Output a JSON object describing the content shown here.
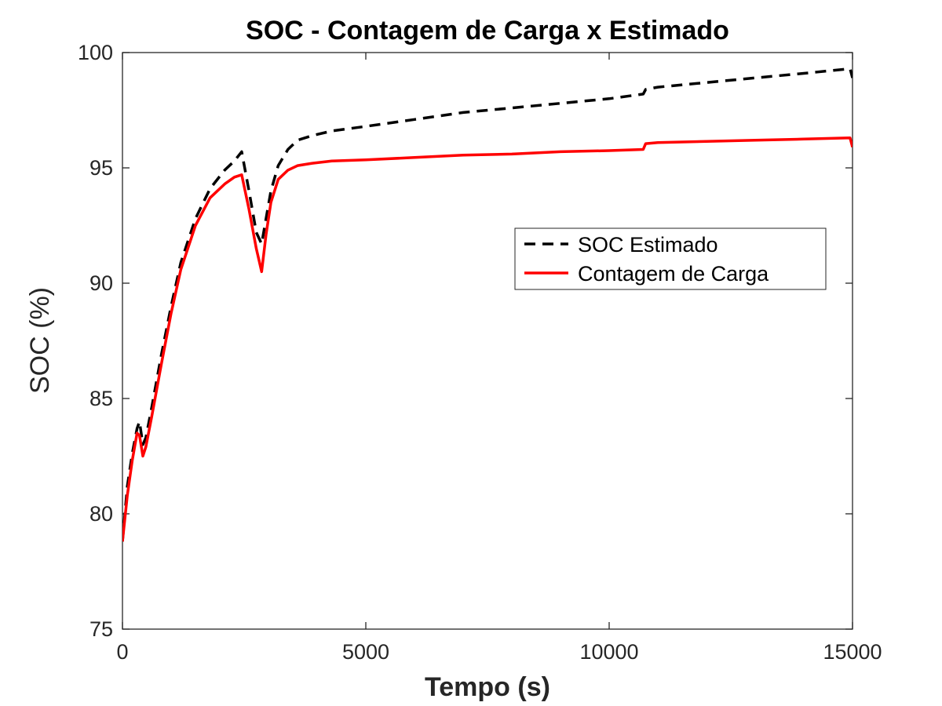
{
  "chart_data": {
    "type": "line",
    "title": "SOC - Contagem de Carga x Estimado",
    "xlabel": "Tempo (s)",
    "ylabel": "SOC (%)",
    "xlim": [
      0,
      15000
    ],
    "ylim": [
      75,
      100
    ],
    "xticks": [
      0,
      5000,
      10000,
      15000
    ],
    "yticks": [
      75,
      80,
      85,
      90,
      95,
      100
    ],
    "grid": false,
    "legend_position": "upper-right",
    "series": [
      {
        "name": "SOC Estimado",
        "color": "#000000",
        "style": "dashed",
        "x": [
          0,
          100,
          200,
          300,
          350,
          420,
          480,
          600,
          800,
          1000,
          1200,
          1500,
          1800,
          2100,
          2300,
          2450,
          2600,
          2750,
          2860,
          2950,
          3050,
          3200,
          3400,
          3600,
          3900,
          4300,
          5000,
          6000,
          7000,
          8000,
          9000,
          10000,
          10700,
          10750,
          11000,
          12000,
          13000,
          14000,
          14950,
          15000
        ],
        "y": [
          78.8,
          81.2,
          82.6,
          83.7,
          84.0,
          83.0,
          83.3,
          84.6,
          86.9,
          89.0,
          90.9,
          92.8,
          94.1,
          94.9,
          95.3,
          95.7,
          94.0,
          92.2,
          91.7,
          92.8,
          94.0,
          95.1,
          95.8,
          96.2,
          96.4,
          96.6,
          96.8,
          97.1,
          97.4,
          97.6,
          97.8,
          98.0,
          98.2,
          98.4,
          98.5,
          98.7,
          98.9,
          99.1,
          99.3,
          98.9
        ]
      },
      {
        "name": "Contagem de Carga",
        "color": "#ff0000",
        "style": "solid",
        "x": [
          0,
          100,
          200,
          300,
          350,
          420,
          480,
          600,
          800,
          1000,
          1200,
          1500,
          1800,
          2100,
          2300,
          2450,
          2600,
          2750,
          2860,
          2950,
          3050,
          3200,
          3400,
          3600,
          3900,
          4300,
          5000,
          6000,
          7000,
          8000,
          9000,
          10000,
          10700,
          10750,
          11000,
          12000,
          13000,
          14000,
          14950,
          15000
        ],
        "y": [
          78.8,
          80.8,
          82.3,
          83.5,
          83.4,
          82.5,
          82.9,
          84.2,
          86.5,
          88.7,
          90.6,
          92.5,
          93.7,
          94.3,
          94.6,
          94.7,
          93.2,
          91.5,
          90.5,
          92.1,
          93.5,
          94.5,
          94.9,
          95.1,
          95.2,
          95.3,
          95.35,
          95.45,
          95.55,
          95.6,
          95.7,
          95.75,
          95.8,
          96.05,
          96.1,
          96.15,
          96.2,
          96.25,
          96.3,
          95.9
        ]
      }
    ]
  }
}
